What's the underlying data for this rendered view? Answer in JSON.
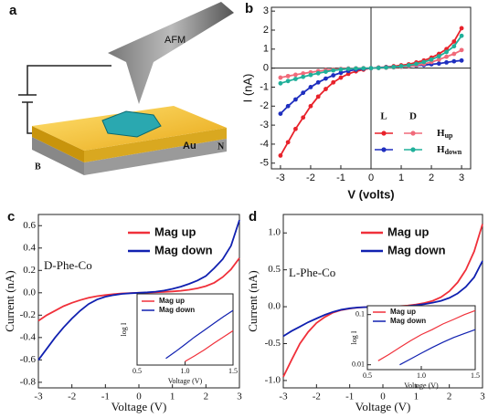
{
  "panel_a": {
    "label": "a",
    "tip": "AFM",
    "substrate": "Au",
    "pole_left": "B",
    "pole_right": "N"
  },
  "chart_data": [
    {
      "type": "line",
      "panel_label": "b",
      "x_label": "V (volts)",
      "y_label": "I (nA)",
      "x": [
        -3,
        -2.75,
        -2.5,
        -2.25,
        -2,
        -1.75,
        -1.5,
        -1.25,
        -1,
        -0.75,
        -0.5,
        -0.25,
        0,
        0.25,
        0.5,
        0.75,
        1,
        1.25,
        1.5,
        1.75,
        2,
        2.25,
        2.5,
        2.75,
        3
      ],
      "series": [
        {
          "color": "#e8222b",
          "values": [
            -4.6,
            -3.9,
            -3.2,
            -2.6,
            -2.0,
            -1.5,
            -1.1,
            -0.75,
            -0.5,
            -0.3,
            -0.17,
            -0.08,
            0,
            0.03,
            0.06,
            0.1,
            0.15,
            0.2,
            0.3,
            0.4,
            0.55,
            0.75,
            1.0,
            1.4,
            2.1
          ]
        },
        {
          "color": "#1f2fbf",
          "values": [
            -2.4,
            -2.0,
            -1.65,
            -1.3,
            -1.0,
            -0.75,
            -0.55,
            -0.38,
            -0.25,
            -0.15,
            -0.08,
            -0.03,
            0,
            0.02,
            0.04,
            0.06,
            0.08,
            0.1,
            0.13,
            0.16,
            0.2,
            0.24,
            0.3,
            0.36,
            0.4
          ]
        },
        {
          "color": "#f06a7a",
          "values": [
            -0.5,
            -0.42,
            -0.35,
            -0.28,
            -0.22,
            -0.16,
            -0.11,
            -0.07,
            -0.04,
            -0.02,
            -0.01,
            0,
            0,
            0.01,
            0.02,
            0.04,
            0.07,
            0.1,
            0.15,
            0.22,
            0.32,
            0.45,
            0.6,
            0.75,
            0.95
          ]
        },
        {
          "color": "#20b09a",
          "values": [
            -0.8,
            -0.68,
            -0.57,
            -0.46,
            -0.36,
            -0.27,
            -0.19,
            -0.12,
            -0.07,
            -0.04,
            -0.02,
            -0.01,
            0,
            0.01,
            0.03,
            0.06,
            0.1,
            0.15,
            0.22,
            0.32,
            0.45,
            0.62,
            0.85,
            1.15,
            1.7
          ]
        }
      ],
      "legend": {
        "columns": [
          "L",
          "D"
        ],
        "rows": [
          {
            "label": "H",
            "subscript": "up"
          },
          {
            "label": "H",
            "subscript": "down"
          }
        ]
      },
      "xlim": [
        -3.3,
        3.3
      ],
      "ylim": [
        -5.3,
        3.2
      ],
      "xticks": [
        -3,
        -2,
        -1,
        0,
        1,
        2,
        3
      ],
      "yticks": [
        -5,
        -4,
        -3,
        -2,
        -1,
        0,
        1,
        2,
        3
      ],
      "markers": true,
      "zero_axes": true
    },
    {
      "type": "line",
      "panel_label": "c",
      "annotation": "D-Phe-Co",
      "x_label": "Voltage (V)",
      "y_label": "Current (nA)",
      "x": [
        -3,
        -2.75,
        -2.5,
        -2.25,
        -2,
        -1.75,
        -1.5,
        -1.25,
        -1,
        -0.75,
        -0.5,
        -0.25,
        0,
        0.25,
        0.5,
        0.75,
        1,
        1.25,
        1.5,
        1.75,
        2,
        2.25,
        2.5,
        2.75,
        3
      ],
      "series": [
        {
          "name": "Mag up",
          "color": "#f0303a",
          "values": [
            -0.25,
            -0.2,
            -0.16,
            -0.12,
            -0.09,
            -0.065,
            -0.045,
            -0.03,
            -0.02,
            -0.012,
            -0.006,
            -0.002,
            0,
            0.002,
            0.005,
            0.008,
            0.012,
            0.018,
            0.027,
            0.04,
            0.06,
            0.09,
            0.14,
            0.21,
            0.31
          ]
        },
        {
          "name": "Mag down",
          "color": "#1020b0",
          "values": [
            -0.6,
            -0.5,
            -0.4,
            -0.31,
            -0.23,
            -0.16,
            -0.1,
            -0.06,
            -0.035,
            -0.02,
            -0.01,
            -0.004,
            0,
            0.004,
            0.01,
            0.02,
            0.035,
            0.055,
            0.08,
            0.11,
            0.15,
            0.22,
            0.3,
            0.42,
            0.65
          ]
        }
      ],
      "xlim": [
        -3,
        3
      ],
      "ylim": [
        -0.85,
        0.7
      ],
      "xticks": [
        -3,
        -2,
        -1,
        0,
        1,
        2,
        3
      ],
      "yticks": [
        -0.8,
        -0.6,
        -0.4,
        -0.2,
        {
          "value": 0,
          "label": "0.0"
        },
        0.2,
        0.4,
        0.6
      ]
    },
    {
      "type": "line",
      "x_label": "Voltage (V)",
      "y_label": "log I",
      "yscale": "log",
      "x": [
        0.8,
        0.9,
        1.0,
        1.1,
        1.2,
        1.3,
        1.4,
        1.5
      ],
      "series": [
        {
          "name": "Mag up",
          "color": "#f0303a",
          "values": [
            null,
            null,
            0.005,
            0.007,
            0.01,
            0.015,
            0.022,
            0.032
          ]
        },
        {
          "name": "Mag down",
          "color": "#1020b0",
          "values": [
            0.006,
            0.009,
            0.014,
            0.022,
            0.033,
            0.05,
            0.075,
            0.11
          ]
        }
      ],
      "xlim": [
        0.5,
        1.5
      ],
      "ylim": [
        0.004,
        0.3
      ],
      "xticks": [
        0.5,
        {
          "value": 1,
          "label": "1.0"
        },
        1.5
      ]
    },
    {
      "type": "line",
      "panel_label": "d",
      "annotation": "L-Phe-Co",
      "x_label": "Voltage (V)",
      "y_label": "Current (nA)",
      "x": [
        -3,
        -2.75,
        -2.5,
        -2.25,
        -2,
        -1.75,
        -1.5,
        -1.25,
        -1,
        -0.75,
        -0.5,
        -0.25,
        0,
        0.25,
        0.5,
        0.75,
        1,
        1.25,
        1.5,
        1.75,
        2,
        2.25,
        2.5,
        2.75,
        3
      ],
      "series": [
        {
          "name": "Mag up",
          "color": "#f0303a",
          "values": [
            -0.95,
            -0.72,
            -0.5,
            -0.34,
            -0.22,
            -0.14,
            -0.08,
            -0.045,
            -0.025,
            -0.012,
            -0.005,
            -0.002,
            0,
            0.003,
            0.008,
            0.016,
            0.03,
            0.05,
            0.08,
            0.13,
            0.21,
            0.33,
            0.5,
            0.75,
            1.12
          ]
        },
        {
          "name": "Mag down",
          "color": "#1020b0",
          "values": [
            -0.4,
            -0.33,
            -0.27,
            -0.21,
            -0.16,
            -0.11,
            -0.07,
            -0.04,
            -0.022,
            -0.01,
            -0.005,
            -0.002,
            0,
            0.002,
            0.005,
            0.01,
            0.02,
            0.035,
            0.055,
            0.08,
            0.12,
            0.18,
            0.27,
            0.4,
            0.62
          ]
        }
      ],
      "xlim": [
        -3,
        3
      ],
      "ylim": [
        -1.1,
        1.25
      ],
      "xticks": [
        -3,
        -2,
        -1,
        0,
        1,
        2,
        3
      ],
      "yticks": [
        {
          "value": -1,
          "label": "-1.0"
        },
        -0.5,
        {
          "value": 0,
          "label": "0.0"
        },
        0.5,
        {
          "value": 1,
          "label": "1.0"
        }
      ]
    },
    {
      "type": "line",
      "x_label": "Voltage (V)",
      "y_label": "log I",
      "yscale": "log",
      "x": [
        0.6,
        0.7,
        0.8,
        0.9,
        1.0,
        1.1,
        1.2,
        1.3,
        1.4,
        1.5
      ],
      "series": [
        {
          "name": "Mag up",
          "color": "#f0303a",
          "values": [
            0.012,
            0.016,
            0.022,
            0.03,
            0.04,
            0.05,
            0.065,
            0.08,
            0.1,
            0.12
          ]
        },
        {
          "name": "Mag down",
          "color": "#1020b0",
          "values": [
            null,
            null,
            0.01,
            0.013,
            0.017,
            0.022,
            0.028,
            0.035,
            0.042,
            0.05
          ]
        }
      ],
      "xlim": [
        0.5,
        1.5
      ],
      "ylim": [
        0.008,
        0.15
      ],
      "xticks": [
        0.5,
        {
          "value": 1,
          "label": "1.0"
        },
        1.5
      ],
      "yticks": [
        0.01,
        0.1
      ]
    }
  ]
}
